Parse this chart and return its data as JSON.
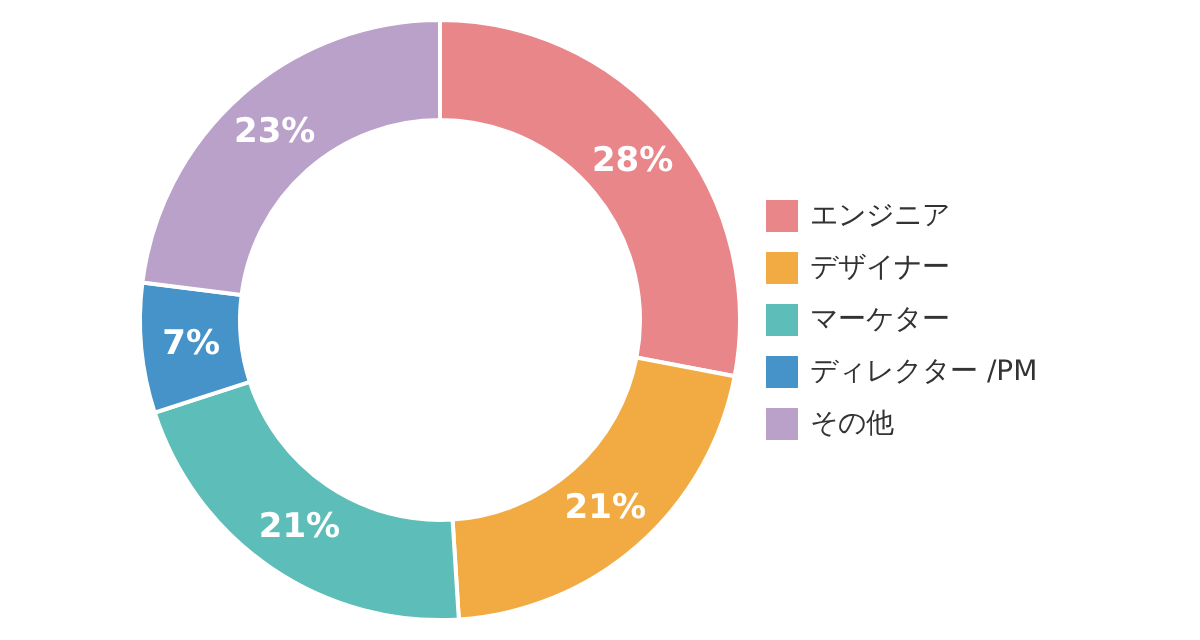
{
  "chart_data": {
    "type": "donut",
    "categories": [
      "エンジニア",
      "デザイナー",
      "マーケター",
      "ディレクター /PM",
      "その他"
    ],
    "values": [
      28,
      21,
      21,
      7,
      23
    ],
    "value_labels": [
      "28%",
      "21%",
      "21%",
      "7%",
      "23%"
    ],
    "colors": [
      "#e8868a",
      "#f2ab43",
      "#5dbdb8",
      "#4593c8",
      "#b9a1c9"
    ],
    "legend": "right"
  }
}
